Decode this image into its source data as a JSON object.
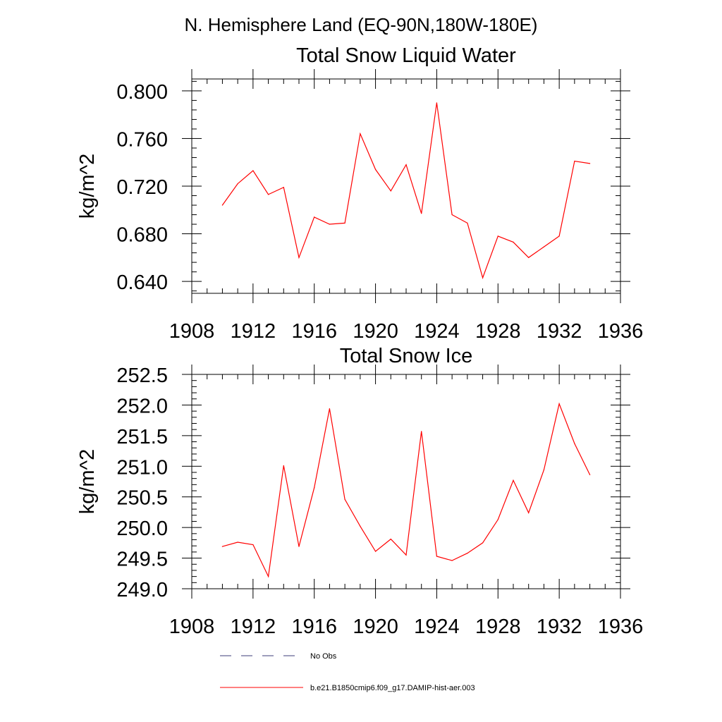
{
  "page_title": "N. Hemisphere Land (EQ-90N,180W-180E)",
  "legend": {
    "entries": [
      {
        "label": "No Obs",
        "style": "dashed",
        "color": "#3d3d7a"
      },
      {
        "label": "b.e21.B1850cmip6.f09_g17.DAMIP-hist-aer.003",
        "style": "solid",
        "color": "#ff0000"
      }
    ]
  },
  "chart_data": [
    {
      "type": "line",
      "title": "Total Snow Liquid Water",
      "xlabel": "",
      "ylabel": "kg/m^2",
      "xlim": [
        1908,
        1936
      ],
      "ylim": [
        0.63,
        0.81
      ],
      "xticks": [
        "1908",
        "1912",
        "1916",
        "1920",
        "1924",
        "1928",
        "1932",
        "1936"
      ],
      "yticks": [
        "0.640",
        "0.680",
        "0.720",
        "0.760",
        "0.800"
      ],
      "ytick_values": [
        0.64,
        0.68,
        0.72,
        0.76,
        0.8
      ],
      "series": [
        {
          "name": "b.e21.B1850cmip6.f09_g17.DAMIP-hist-aer.003",
          "color": "#ff0000",
          "x": [
            1910,
            1911,
            1912,
            1913,
            1914,
            1915,
            1916,
            1917,
            1918,
            1919,
            1920,
            1921,
            1922,
            1923,
            1924,
            1925,
            1926,
            1927,
            1928,
            1929,
            1930,
            1931,
            1932,
            1933,
            1934
          ],
          "values": [
            0.704,
            0.722,
            0.733,
            0.713,
            0.719,
            0.66,
            0.694,
            0.688,
            0.689,
            0.764,
            0.734,
            0.716,
            0.738,
            0.697,
            0.79,
            0.696,
            0.689,
            0.643,
            0.678,
            0.673,
            0.66,
            0.669,
            0.678,
            0.741,
            0.739
          ]
        }
      ]
    },
    {
      "type": "line",
      "title": "Total Snow Ice",
      "xlabel": "",
      "ylabel": "kg/m^2",
      "xlim": [
        1908,
        1936
      ],
      "ylim": [
        249.0,
        252.5
      ],
      "xticks": [
        "1908",
        "1912",
        "1916",
        "1920",
        "1924",
        "1928",
        "1932",
        "1936"
      ],
      "yticks": [
        "249.0",
        "249.5",
        "250.0",
        "250.5",
        "251.0",
        "251.5",
        "252.0",
        "252.5"
      ],
      "ytick_values": [
        249.0,
        249.5,
        250.0,
        250.5,
        251.0,
        251.5,
        252.0,
        252.5
      ],
      "series": [
        {
          "name": "b.e21.B1850cmip6.f09_g17.DAMIP-hist-aer.003",
          "color": "#ff0000",
          "x": [
            1910,
            1911,
            1912,
            1913,
            1914,
            1915,
            1916,
            1917,
            1918,
            1919,
            1920,
            1921,
            1922,
            1923,
            1924,
            1925,
            1926,
            1927,
            1928,
            1929,
            1930,
            1931,
            1932,
            1933,
            1934
          ],
          "values": [
            249.69,
            249.76,
            249.72,
            249.2,
            251.01,
            249.69,
            250.65,
            251.94,
            250.46,
            250.02,
            249.61,
            249.81,
            249.55,
            251.57,
            249.53,
            249.46,
            249.58,
            249.75,
            250.13,
            250.77,
            250.24,
            250.94,
            252.02,
            251.37,
            250.86
          ]
        }
      ]
    }
  ]
}
